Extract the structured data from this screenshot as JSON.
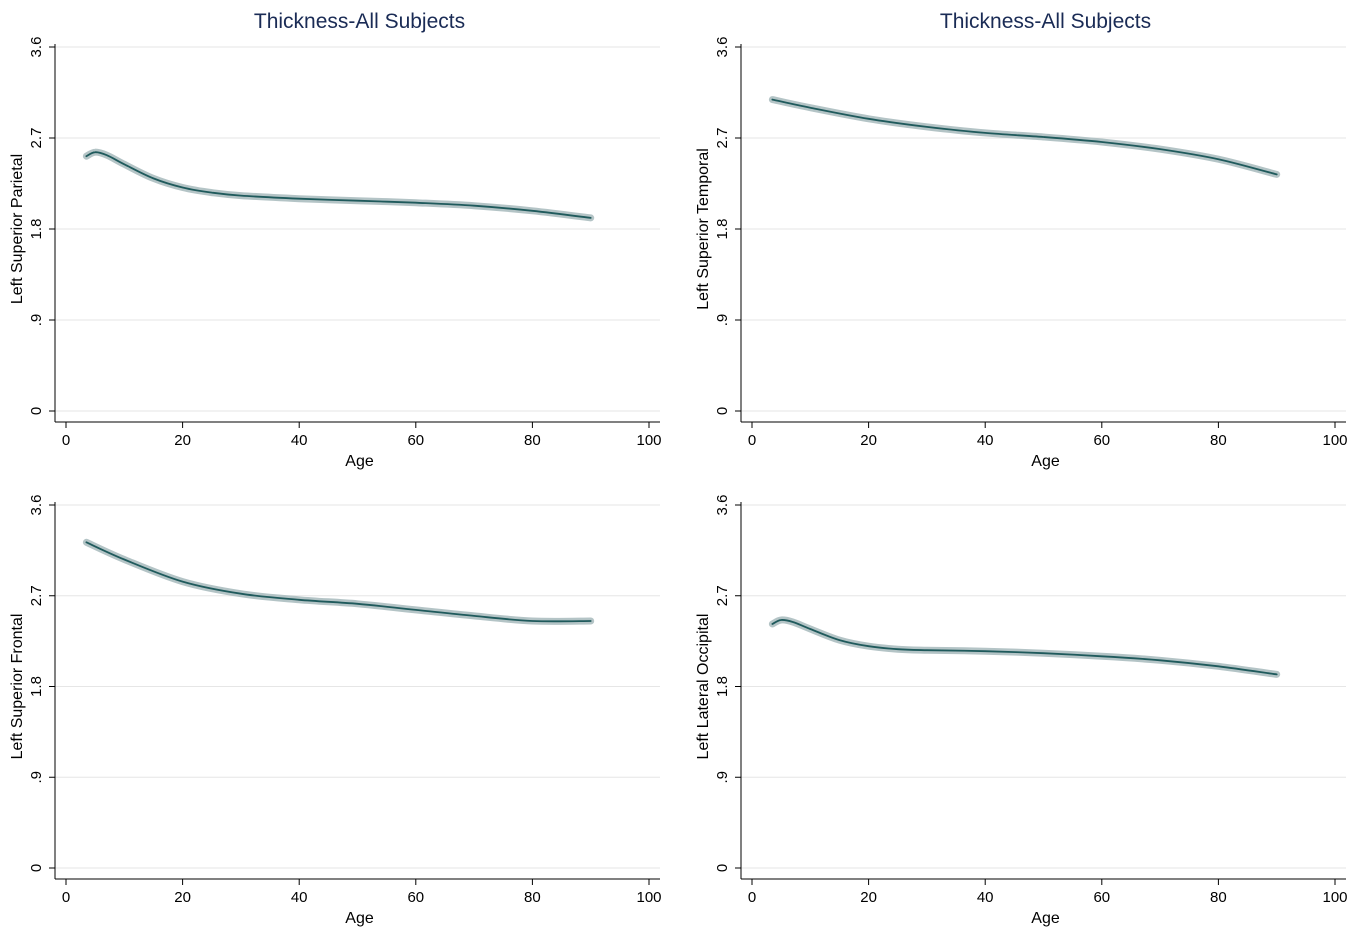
{
  "chart_data": [
    {
      "type": "line",
      "title": "Thickness-All Subjects",
      "xlabel": "Age",
      "ylabel": "Left Superior Parietal",
      "xlim": [
        0,
        100
      ],
      "ylim": [
        0,
        3.6
      ],
      "xticks": [
        "0",
        "20",
        "40",
        "60",
        "80",
        "100"
      ],
      "yticks": [
        "0",
        ".9",
        "1.8",
        "2.7",
        "3.6"
      ],
      "grid": true,
      "series": [
        {
          "x": [
            3.5,
            5,
            7,
            10,
            15,
            20,
            25,
            30,
            40,
            50,
            60,
            70,
            80,
            90
          ],
          "y": [
            2.52,
            2.56,
            2.53,
            2.44,
            2.3,
            2.21,
            2.16,
            2.13,
            2.1,
            2.08,
            2.06,
            2.03,
            1.98,
            1.91
          ]
        }
      ]
    },
    {
      "type": "line",
      "title": "Thickness-All Subjects",
      "xlabel": "Age",
      "ylabel": "Left Superior Temporal",
      "xlim": [
        0,
        100
      ],
      "ylim": [
        0,
        3.6
      ],
      "xticks": [
        "0",
        "20",
        "40",
        "60",
        "80",
        "100"
      ],
      "yticks": [
        "0",
        ".9",
        "1.8",
        "2.7",
        "3.6"
      ],
      "grid": true,
      "series": [
        {
          "x": [
            3.5,
            10,
            20,
            30,
            40,
            50,
            60,
            70,
            80,
            90
          ],
          "y": [
            3.08,
            3.0,
            2.89,
            2.81,
            2.75,
            2.71,
            2.66,
            2.59,
            2.49,
            2.34
          ]
        }
      ]
    },
    {
      "type": "line",
      "title": "",
      "xlabel": "Age",
      "ylabel": "Left Superior Frontal",
      "xlim": [
        0,
        100
      ],
      "ylim": [
        0,
        3.6
      ],
      "xticks": [
        "0",
        "20",
        "40",
        "60",
        "80",
        "100"
      ],
      "yticks": [
        "0",
        ".9",
        "1.8",
        "2.7",
        "3.6"
      ],
      "grid": true,
      "series": [
        {
          "x": [
            3.5,
            10,
            20,
            30,
            40,
            50,
            60,
            70,
            80,
            90
          ],
          "y": [
            3.23,
            3.06,
            2.84,
            2.72,
            2.66,
            2.62,
            2.56,
            2.5,
            2.45,
            2.45
          ]
        }
      ]
    },
    {
      "type": "line",
      "title": "",
      "xlabel": "Age",
      "ylabel": "Left Lateral Occipital",
      "xlim": [
        0,
        100
      ],
      "ylim": [
        0,
        3.6
      ],
      "xticks": [
        "0",
        "20",
        "40",
        "60",
        "80",
        "100"
      ],
      "yticks": [
        "0",
        ".9",
        "1.8",
        "2.7",
        "3.6"
      ],
      "grid": true,
      "series": [
        {
          "x": [
            3.5,
            5,
            7,
            10,
            15,
            20,
            25,
            30,
            40,
            50,
            60,
            70,
            80,
            90
          ],
          "y": [
            2.42,
            2.46,
            2.44,
            2.37,
            2.26,
            2.2,
            2.17,
            2.16,
            2.15,
            2.13,
            2.1,
            2.06,
            2.0,
            1.92
          ]
        }
      ]
    }
  ]
}
